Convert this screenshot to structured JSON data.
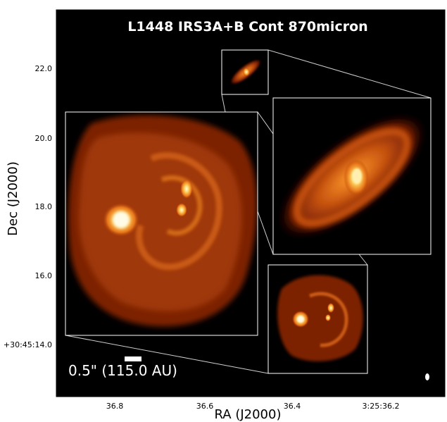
{
  "title": "L1448 IRS3A+B Cont 870micron",
  "axes": {
    "xlabel": "RA (J2000)",
    "ylabel": "Dec (J2000)",
    "x_ticks": [
      "36.8",
      "36.6",
      "36.4",
      "3:25:36.2"
    ],
    "y_ticks": [
      "22.0",
      "20.0",
      "18.0",
      "16.0",
      "+30:45:14.0"
    ]
  },
  "scalebar": {
    "label": "0.5\" (115.0 AU)"
  },
  "colors": {
    "background": "#000000",
    "frame": "#ffffff",
    "colormap": [
      "#000000",
      "#3a0800",
      "#7a1c02",
      "#b83f07",
      "#e26d12",
      "#ffb23a",
      "#fff6c8"
    ]
  },
  "panels": [
    {
      "name": "overview-inset",
      "content": "small bright elongated source IRS3A (tilted disk)"
    },
    {
      "name": "zoom-irs3a",
      "content": "IRS3A inclined disk with bright compact center"
    },
    {
      "name": "zoom-irs3b",
      "content": "IRS3B spiral-armed disk with two compact sources"
    },
    {
      "name": "zoom-irs3b-large",
      "content": "enlarged IRS3B spiral disk"
    }
  ]
}
